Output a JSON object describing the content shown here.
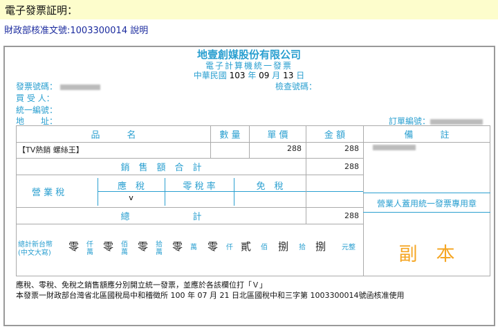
{
  "header": {
    "title": "電子發票証明："
  },
  "approval": {
    "text": "財政部核准文號:1003300014",
    "link": "說明"
  },
  "invoice": {
    "company": "地壹創媒股份有限公司",
    "type": "電子計算機統一發票",
    "date": {
      "era": "中華民國",
      "year": "103",
      "year_label": "年",
      "month": "09",
      "month_label": "月",
      "day": "13",
      "day_label": "日"
    },
    "labels": {
      "invoice_no": "發票號碼：",
      "check_no": "檢查號碼：",
      "buyer": "買 受 人：",
      "tax_id": "統一編號：",
      "address": "地　　址：",
      "order_no": "訂單編號："
    },
    "columns": {
      "item": "品　　　名",
      "qty": "數 量",
      "price": "單 價",
      "amount": "金 額",
      "remark": "備　　　註"
    },
    "items": [
      {
        "name": "【TV熱銷 螺絲王】",
        "qty": "",
        "price": "288",
        "amount": "288"
      }
    ],
    "sales_total_label": "銷　售　額　合　計",
    "sales_total": "288",
    "tax_label": "營 業 稅",
    "tax_types": [
      "應　稅",
      "零 稅 率",
      "免　稅"
    ],
    "tax_mark": "v",
    "total_label": "總　　　　　　　計",
    "total": "288",
    "words_label": [
      "總計新台幣",
      "(中文大寫)"
    ],
    "words_digits": [
      "零",
      "零",
      "零",
      "零",
      "零",
      "貳",
      "捌",
      "捌"
    ],
    "words_units": [
      "仟萬",
      "佰萬",
      "拾萬",
      "萬",
      "仟",
      "佰",
      "拾",
      "元整"
    ],
    "stamp_label": "營業人蓋用統一發票專用章",
    "copy_label": "副　本",
    "notes": [
      "應稅、零稅、免稅之銷售額應分別開立統一發票，並應於各該欄位打「Ｖ」",
      "本發票一財政部台灣省北區國稅局中和稽徵所 100 年 07 月 21 日北區國稅中和三字第 1003300014號函核准使用"
    ]
  },
  "colors": {
    "accent": "#2a9fd0",
    "copy": "#f5a623",
    "header_bg": "#fdfdcc",
    "link": "#1a2a9e"
  }
}
